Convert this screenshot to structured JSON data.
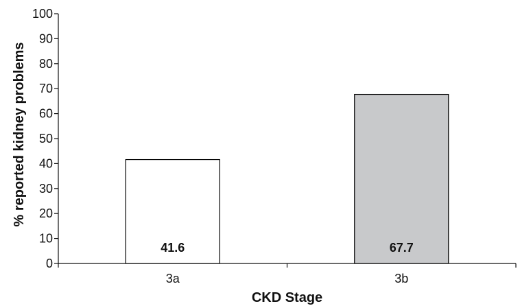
{
  "chart_data": {
    "type": "bar",
    "title": "",
    "xlabel": "CKD Stage",
    "ylabel": "% reported kidney problems",
    "categories": [
      "3a",
      "3b"
    ],
    "values": [
      41.6,
      67.7
    ],
    "value_labels": [
      "41.6",
      "67.7"
    ],
    "bar_colors": [
      "#ffffff",
      "#c8c9cb"
    ],
    "bar_outline_color": "#000000",
    "ylim": [
      0,
      100
    ],
    "yticks": [
      0,
      10,
      20,
      30,
      40,
      50,
      60,
      70,
      80,
      90,
      100
    ],
    "ytick_labels": [
      "0",
      "10",
      "20",
      "30",
      "40",
      "50",
      "60",
      "70",
      "80",
      "90",
      "100"
    ],
    "grid": false,
    "legend": "none"
  }
}
